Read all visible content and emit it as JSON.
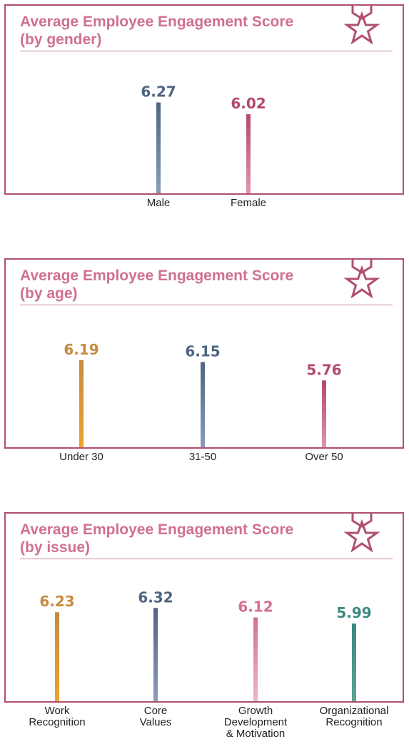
{
  "colors": {
    "border": "#b0506e",
    "title": "#d0708f",
    "orange": "#d28a3a",
    "slate": "#536a84",
    "rose": "#b94c6c",
    "pink": "#d8789a",
    "teal": "#3c8a80"
  },
  "icons": {
    "badge": "star-ribbon-badge-icon"
  },
  "chart_data": [
    {
      "type": "bar",
      "title": "Average Employee Engagement Score\n(by gender)",
      "categories": [
        "Male",
        "Female"
      ],
      "values": [
        6.27,
        6.02
      ],
      "series_colors": [
        "slate",
        "rose"
      ],
      "value_labels": [
        "6.27",
        "6.02"
      ]
    },
    {
      "type": "bar",
      "title": "Average Employee Engagement Score\n(by age)",
      "categories": [
        "Under 30",
        "31-50",
        "Over 50"
      ],
      "values": [
        6.19,
        6.15,
        5.76
      ],
      "series_colors": [
        "orange",
        "slate",
        "rose"
      ],
      "value_labels": [
        "6.19",
        "6.15",
        "5.76"
      ]
    },
    {
      "type": "bar",
      "title": "Average Employee Engagement Score\n (by issue)",
      "categories": [
        "Work\nRecognition",
        "Core\nValues",
        "Growth\nDevelopment\n& Motivation",
        "Organizational\nRecognition"
      ],
      "values": [
        6.23,
        6.32,
        6.12,
        5.99
      ],
      "series_colors": [
        "orange",
        "slate",
        "pink",
        "teal"
      ],
      "value_labels": [
        "6.23",
        "6.32",
        "6.12",
        "5.99"
      ]
    }
  ]
}
